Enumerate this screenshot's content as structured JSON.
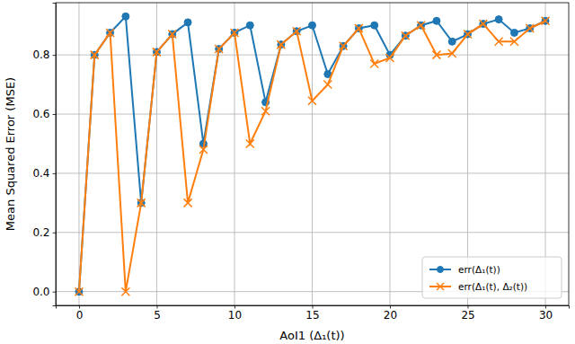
{
  "chart_data": {
    "type": "line",
    "x_label": "AoI1 (Δ₁(t))",
    "y_label": "Mean Squared Error (MSE)",
    "x": [
      0,
      1,
      2,
      3,
      4,
      5,
      6,
      7,
      8,
      9,
      10,
      11,
      12,
      13,
      14,
      15,
      16,
      17,
      18,
      19,
      20,
      21,
      22,
      23,
      24,
      25,
      26,
      27,
      28,
      29,
      30
    ],
    "series": [
      {
        "name": "err(Δ₁(t))",
        "color": "#1f77b4",
        "marker": "circle",
        "line_style": "solid",
        "values": [
          0.0,
          0.8,
          0.875,
          0.93,
          0.3,
          0.81,
          0.87,
          0.91,
          0.5,
          0.82,
          0.875,
          0.9,
          0.64,
          0.835,
          0.88,
          0.9,
          0.735,
          0.83,
          0.89,
          0.9,
          0.8,
          0.865,
          0.9,
          0.915,
          0.845,
          0.87,
          0.905,
          0.92,
          0.875,
          0.89,
          0.915
        ]
      },
      {
        "name": "err(Δ₁(t), Δ₂(t))",
        "color": "#ff7f0e",
        "marker": "x",
        "line_style": "solid",
        "values": [
          0.0,
          0.8,
          0.875,
          0.0,
          0.3,
          0.81,
          0.87,
          0.3,
          0.48,
          0.82,
          0.875,
          0.5,
          0.61,
          0.835,
          0.88,
          0.645,
          0.7,
          0.83,
          0.89,
          0.77,
          0.79,
          0.865,
          0.9,
          0.8,
          0.805,
          0.87,
          0.905,
          0.845,
          0.845,
          0.89,
          0.915
        ]
      }
    ],
    "xlim": [
      -1.5,
      31.5
    ],
    "xticks": [
      0,
      5,
      10,
      15,
      20,
      25,
      30
    ],
    "ylim": [
      -0.0465,
      0.9765
    ],
    "yticks": [
      {
        "value": 0,
        "label": "0.0"
      },
      0.2,
      0.4,
      0.6,
      0.8
    ],
    "grid": true,
    "legend": "lower right"
  }
}
